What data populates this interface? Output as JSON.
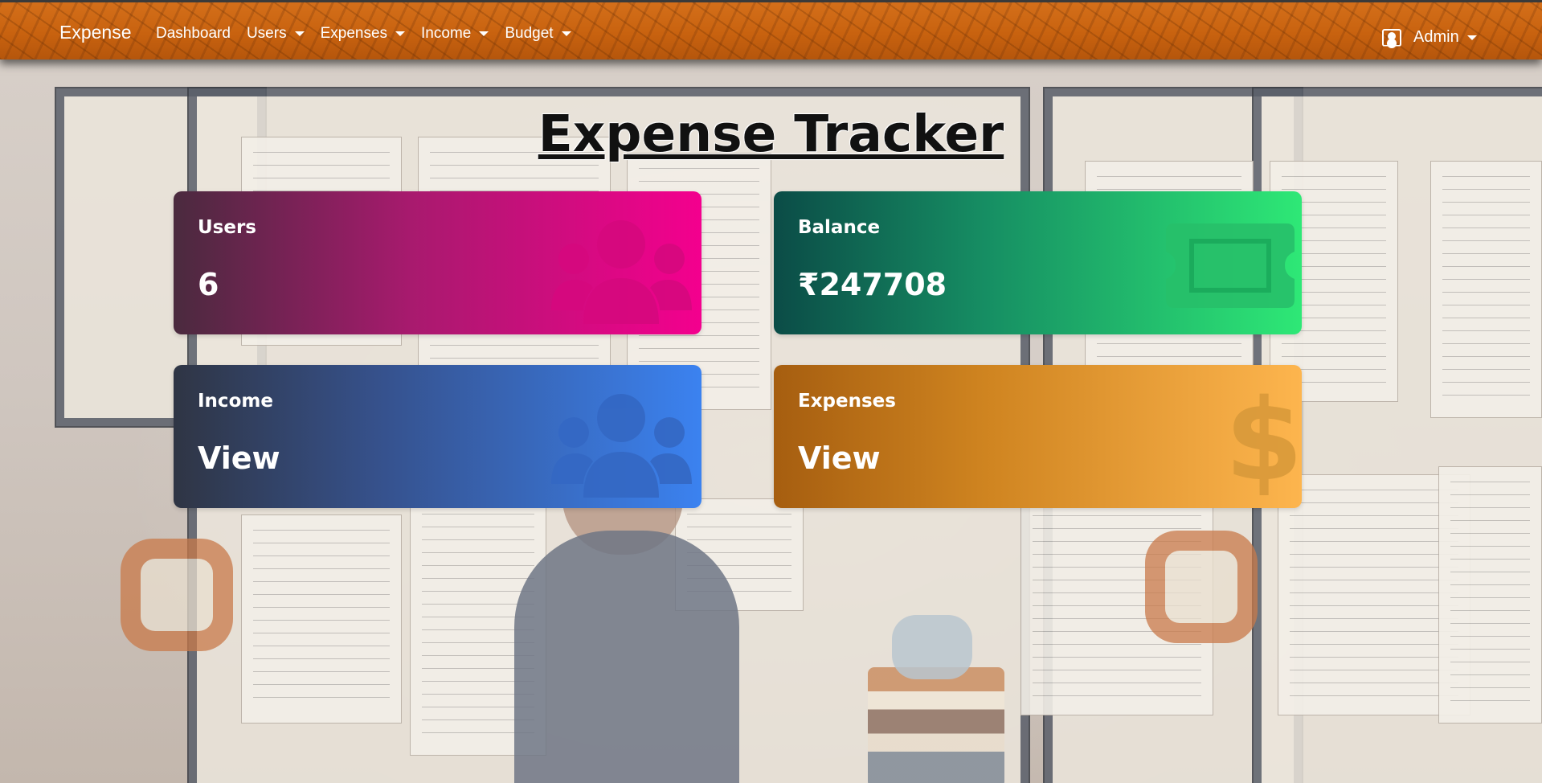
{
  "navbar": {
    "brand": "Expense",
    "items": [
      {
        "label": "Dashboard",
        "dropdown": false
      },
      {
        "label": "Users",
        "dropdown": true
      },
      {
        "label": "Expenses",
        "dropdown": true
      },
      {
        "label": "Income",
        "dropdown": true
      },
      {
        "label": "Budget",
        "dropdown": true
      }
    ],
    "user_label": "Admin",
    "color": "#c8620f"
  },
  "page": {
    "title": "Expense Tracker"
  },
  "cards": {
    "users": {
      "label": "Users",
      "value": "6",
      "icon": "users-icon",
      "color": "#f4008e"
    },
    "balance": {
      "label": "Balance",
      "value": "₹247708",
      "icon": "money-bill-icon",
      "color": "#2ee876"
    },
    "income": {
      "label": "Income",
      "value": "View",
      "icon": "users-icon",
      "color": "#3b82f0"
    },
    "expenses": {
      "label": "Expenses",
      "value": "View",
      "icon": "dollar-sign-icon",
      "color": "#fdb54e"
    }
  }
}
